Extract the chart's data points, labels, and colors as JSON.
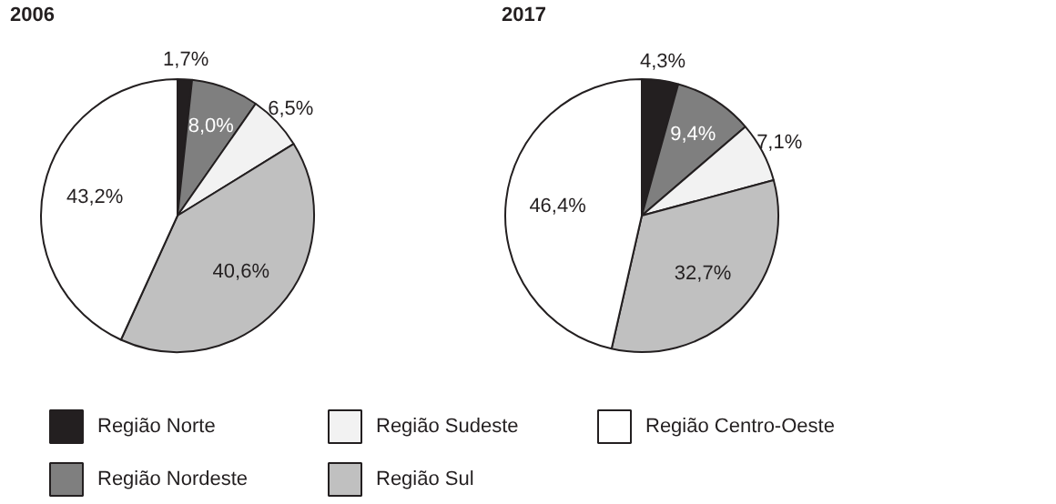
{
  "chart_data": [
    {
      "type": "pie",
      "title": "2006",
      "categories": [
        "Região Norte",
        "Região Nordeste",
        "Região Sudeste",
        "Região Sul",
        "Região Centro-Oeste"
      ],
      "values": [
        1.7,
        8.0,
        6.5,
        40.6,
        43.2
      ],
      "colors": [
        "#231f20",
        "#7f7f7f",
        "#f2f2f2",
        "#c0c0c0",
        "#ffffff"
      ],
      "value_labels": [
        "1,7%",
        "8,0%",
        "6,5%",
        "40,6%",
        "43,2%"
      ],
      "legend": "bottom"
    },
    {
      "type": "pie",
      "title": "2017",
      "values": [
        4.3,
        9.4,
        7.1,
        32.7,
        46.4
      ],
      "colors": [
        "#231f20",
        "#7f7f7f",
        "#f2f2f2",
        "#c0c0c0",
        "#ffffff"
      ],
      "value_labels": [
        "4,3%",
        "9,4%",
        "7,1%",
        "32,7%",
        "46,4%"
      ]
    }
  ]
}
